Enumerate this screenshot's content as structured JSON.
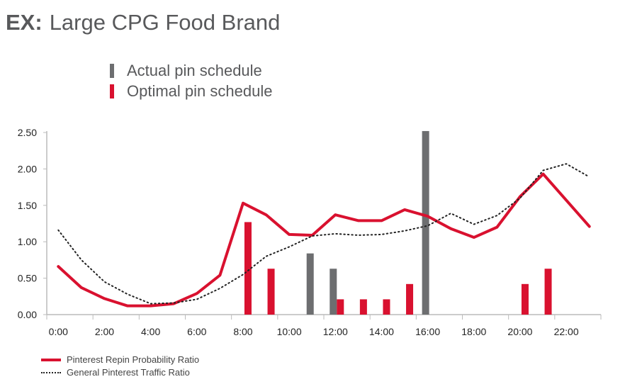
{
  "title": {
    "prefix": "EX:",
    "text": "Large CPG Food Brand"
  },
  "chart_data": {
    "type": "bar+line",
    "title": "Large CPG Food Brand",
    "ylim": [
      0,
      2.5
    ],
    "yticks": [
      "0.00",
      "0.50",
      "1.00",
      "1.50",
      "2.00",
      "2.50"
    ],
    "xtick_labels": [
      "0:00",
      "2:00",
      "4:00",
      "6:00",
      "8:00",
      "10:00",
      "12:00",
      "14:00",
      "16:00",
      "18:00",
      "20:00",
      "22:00"
    ],
    "hours": [
      0,
      1,
      2,
      3,
      4,
      5,
      6,
      7,
      8,
      9,
      10,
      11,
      12,
      13,
      14,
      15,
      16,
      17,
      18,
      19,
      20,
      21,
      22,
      23
    ],
    "bars": [
      {
        "name": "Actual pin schedule",
        "color": "#6d6e70",
        "values": [
          0,
          0,
          0,
          0,
          0,
          0,
          0,
          0,
          0,
          0,
          0,
          0.84,
          0.63,
          0,
          0,
          0,
          2.52,
          0,
          0,
          0,
          0,
          0,
          0,
          0
        ]
      },
      {
        "name": "Optimal pin schedule",
        "color": "#d9112f",
        "values": [
          0,
          0,
          0,
          0,
          0,
          0,
          0,
          0,
          1.27,
          0.63,
          0,
          0,
          0.21,
          0.21,
          0.21,
          0.42,
          0,
          0,
          0,
          0,
          0.42,
          0.63,
          0,
          0
        ]
      }
    ],
    "lines": [
      {
        "name": "Pinterest Repin Probability Ratio",
        "color": "#d9112f",
        "style": "solid",
        "values": [
          0.66,
          0.37,
          0.22,
          0.12,
          0.12,
          0.15,
          0.29,
          0.54,
          1.53,
          1.37,
          1.1,
          1.09,
          1.37,
          1.29,
          1.29,
          1.44,
          1.35,
          1.18,
          1.06,
          1.2,
          1.62,
          1.93,
          1.57,
          1.21
        ]
      },
      {
        "name": "General Pinterest Traffic Ratio",
        "color": "#222222",
        "style": "dotted",
        "values": [
          1.16,
          0.75,
          0.45,
          0.28,
          0.15,
          0.16,
          0.21,
          0.36,
          0.55,
          0.8,
          0.93,
          1.08,
          1.11,
          1.09,
          1.1,
          1.15,
          1.22,
          1.39,
          1.24,
          1.36,
          1.6,
          1.98,
          2.07,
          1.89
        ]
      }
    ],
    "grid": false,
    "legend": [
      "top",
      "bottom-left"
    ]
  }
}
